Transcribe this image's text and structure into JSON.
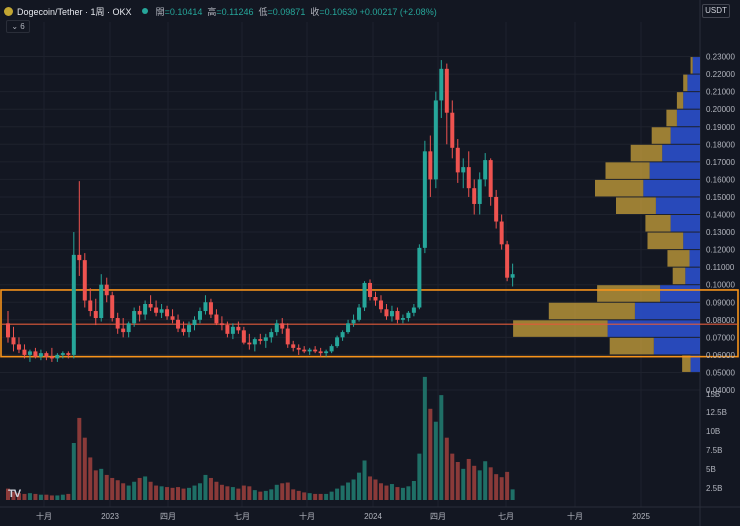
{
  "header": {
    "symbol": "Dogecoin/Tether · 1周 · OKX",
    "ohlc": [
      {
        "k": "開",
        "v": "=0.10414"
      },
      {
        "k": "高",
        "v": "=0.11246"
      },
      {
        "k": "低",
        "v": "=0.09871"
      },
      {
        "k": "收",
        "v": "=0.10630 +0.00217 (+2.08%)"
      }
    ],
    "collapse": "⌄ 6"
  },
  "unit_button": "USDT",
  "logo_text": "TV",
  "colors": {
    "up": "#26a69a",
    "down": "#ef5350",
    "box": "#f7931a",
    "vp_blue": "#2a4ec8",
    "vp_gold": "#bf9a3a"
  },
  "chart_data": {
    "type": "candlestick",
    "title": "Dogecoin/Tether · 1周 · OKX",
    "price_ticks": [
      "0.23000",
      "0.22000",
      "0.21000",
      "0.20000",
      "0.19000",
      "0.18000",
      "0.17000",
      "0.16000",
      "0.15000",
      "0.14000",
      "0.13000",
      "0.12000",
      "0.11000",
      "0.10000",
      "0.09000",
      "0.08000",
      "0.07000",
      "0.06000",
      "0.05000",
      "0.04000"
    ],
    "volume_ticks": [
      "15B",
      "12.5B",
      "10B",
      "7.5B",
      "5B",
      "2.5B"
    ],
    "x_ticks": [
      "十月",
      "2023",
      "四月",
      "七月",
      "十月",
      "2024",
      "四月",
      "七月",
      "十月",
      "2025"
    ],
    "ylim": [
      0.035,
      0.235
    ],
    "candles": [
      [
        0.078,
        0.085,
        0.067,
        0.07
      ],
      [
        0.07,
        0.076,
        0.062,
        0.066
      ],
      [
        0.066,
        0.07,
        0.061,
        0.063
      ],
      [
        0.063,
        0.066,
        0.058,
        0.06
      ],
      [
        0.06,
        0.063,
        0.056,
        0.062
      ],
      [
        0.062,
        0.064,
        0.058,
        0.059
      ],
      [
        0.059,
        0.063,
        0.057,
        0.061
      ],
      [
        0.061,
        0.062,
        0.057,
        0.059
      ],
      [
        0.059,
        0.064,
        0.056,
        0.058
      ],
      [
        0.058,
        0.061,
        0.056,
        0.06
      ],
      [
        0.06,
        0.062,
        0.058,
        0.061
      ],
      [
        0.061,
        0.062,
        0.058,
        0.06
      ],
      [
        0.06,
        0.13,
        0.058,
        0.117
      ],
      [
        0.117,
        0.159,
        0.105,
        0.114
      ],
      [
        0.114,
        0.118,
        0.087,
        0.091
      ],
      [
        0.091,
        0.098,
        0.082,
        0.085
      ],
      [
        0.085,
        0.092,
        0.077,
        0.081
      ],
      [
        0.081,
        0.106,
        0.079,
        0.1
      ],
      [
        0.1,
        0.104,
        0.09,
        0.094
      ],
      [
        0.094,
        0.096,
        0.079,
        0.081
      ],
      [
        0.081,
        0.084,
        0.072,
        0.075
      ],
      [
        0.075,
        0.081,
        0.07,
        0.073
      ],
      [
        0.073,
        0.079,
        0.07,
        0.078
      ],
      [
        0.078,
        0.087,
        0.076,
        0.085
      ],
      [
        0.085,
        0.088,
        0.079,
        0.083
      ],
      [
        0.083,
        0.091,
        0.08,
        0.089
      ],
      [
        0.089,
        0.094,
        0.085,
        0.087
      ],
      [
        0.087,
        0.091,
        0.082,
        0.084
      ],
      [
        0.084,
        0.089,
        0.081,
        0.086
      ],
      [
        0.086,
        0.088,
        0.08,
        0.082
      ],
      [
        0.082,
        0.086,
        0.078,
        0.08
      ],
      [
        0.08,
        0.083,
        0.073,
        0.075
      ],
      [
        0.075,
        0.079,
        0.071,
        0.073
      ],
      [
        0.073,
        0.079,
        0.07,
        0.077
      ],
      [
        0.077,
        0.082,
        0.074,
        0.08
      ],
      [
        0.08,
        0.087,
        0.078,
        0.085
      ],
      [
        0.085,
        0.094,
        0.083,
        0.09
      ],
      [
        0.09,
        0.092,
        0.081,
        0.083
      ],
      [
        0.083,
        0.086,
        0.077,
        0.078
      ],
      [
        0.078,
        0.082,
        0.074,
        0.077
      ],
      [
        0.077,
        0.079,
        0.07,
        0.072
      ],
      [
        0.072,
        0.078,
        0.069,
        0.076
      ],
      [
        0.076,
        0.079,
        0.072,
        0.074
      ],
      [
        0.074,
        0.076,
        0.066,
        0.067
      ],
      [
        0.067,
        0.072,
        0.063,
        0.066
      ],
      [
        0.066,
        0.07,
        0.062,
        0.069
      ],
      [
        0.069,
        0.072,
        0.066,
        0.068
      ],
      [
        0.068,
        0.072,
        0.064,
        0.07
      ],
      [
        0.07,
        0.075,
        0.067,
        0.073
      ],
      [
        0.073,
        0.08,
        0.071,
        0.078
      ],
      [
        0.078,
        0.081,
        0.072,
        0.075
      ],
      [
        0.075,
        0.078,
        0.064,
        0.066
      ],
      [
        0.066,
        0.068,
        0.062,
        0.064
      ],
      [
        0.064,
        0.066,
        0.06,
        0.063
      ],
      [
        0.063,
        0.065,
        0.061,
        0.062
      ],
      [
        0.062,
        0.064,
        0.06,
        0.063
      ],
      [
        0.063,
        0.065,
        0.061,
        0.062
      ],
      [
        0.062,
        0.064,
        0.059,
        0.061
      ],
      [
        0.061,
        0.063,
        0.059,
        0.062
      ],
      [
        0.062,
        0.066,
        0.061,
        0.065
      ],
      [
        0.065,
        0.071,
        0.064,
        0.07
      ],
      [
        0.07,
        0.074,
        0.068,
        0.073
      ],
      [
        0.073,
        0.08,
        0.072,
        0.078
      ],
      [
        0.078,
        0.083,
        0.076,
        0.08
      ],
      [
        0.08,
        0.089,
        0.079,
        0.087
      ],
      [
        0.087,
        0.102,
        0.085,
        0.101
      ],
      [
        0.101,
        0.103,
        0.091,
        0.093
      ],
      [
        0.093,
        0.096,
        0.088,
        0.091
      ],
      [
        0.091,
        0.094,
        0.084,
        0.086
      ],
      [
        0.086,
        0.089,
        0.08,
        0.082
      ],
      [
        0.082,
        0.088,
        0.079,
        0.085
      ],
      [
        0.085,
        0.087,
        0.078,
        0.08
      ],
      [
        0.08,
        0.083,
        0.078,
        0.081
      ],
      [
        0.081,
        0.085,
        0.079,
        0.084
      ],
      [
        0.084,
        0.089,
        0.082,
        0.087
      ],
      [
        0.087,
        0.123,
        0.086,
        0.121
      ],
      [
        0.121,
        0.182,
        0.118,
        0.176
      ],
      [
        0.176,
        0.185,
        0.15,
        0.16
      ],
      [
        0.16,
        0.21,
        0.155,
        0.205
      ],
      [
        0.205,
        0.228,
        0.195,
        0.223
      ],
      [
        0.223,
        0.226,
        0.18,
        0.198
      ],
      [
        0.198,
        0.205,
        0.172,
        0.178
      ],
      [
        0.178,
        0.183,
        0.158,
        0.164
      ],
      [
        0.164,
        0.172,
        0.155,
        0.167
      ],
      [
        0.167,
        0.176,
        0.15,
        0.155
      ],
      [
        0.155,
        0.16,
        0.14,
        0.146
      ],
      [
        0.146,
        0.164,
        0.14,
        0.16
      ],
      [
        0.16,
        0.175,
        0.156,
        0.171
      ],
      [
        0.171,
        0.172,
        0.145,
        0.15
      ],
      [
        0.15,
        0.154,
        0.132,
        0.136
      ],
      [
        0.136,
        0.14,
        0.12,
        0.123
      ],
      [
        0.123,
        0.125,
        0.102,
        0.104
      ],
      [
        0.104,
        0.112,
        0.099,
        0.106
      ]
    ],
    "volumes": [
      1.5,
      1.1,
      0.9,
      0.8,
      0.9,
      0.8,
      0.7,
      0.7,
      0.6,
      0.6,
      0.7,
      0.8,
      7.5,
      10.8,
      8.2,
      5.6,
      3.9,
      4.1,
      3.3,
      2.9,
      2.6,
      2.2,
      1.9,
      2.4,
      2.9,
      3.1,
      2.4,
      1.9,
      1.8,
      1.7,
      1.6,
      1.7,
      1.5,
      1.6,
      1.9,
      2.2,
      3.3,
      2.9,
      2.4,
      2.0,
      1.8,
      1.7,
      1.5,
      1.9,
      1.8,
      1.3,
      1.1,
      1.2,
      1.4,
      2.0,
      2.2,
      2.3,
      1.4,
      1.2,
      1.0,
      0.9,
      0.8,
      0.8,
      0.8,
      1.1,
      1.5,
      1.9,
      2.3,
      2.7,
      3.6,
      5.2,
      3.1,
      2.7,
      2.2,
      1.9,
      2.1,
      1.7,
      1.6,
      1.8,
      2.5,
      6.1,
      16.2,
      12.0,
      10.3,
      13.8,
      8.2,
      6.1,
      5.0,
      4.1,
      5.4,
      4.5,
      3.9,
      5.1,
      4.3,
      3.4,
      3.0,
      3.7,
      1.4
    ],
    "volume_profile": [
      {
        "p": 0.225,
        "up": 0.2,
        "dn": 0.7
      },
      {
        "p": 0.215,
        "up": 0.4,
        "dn": 1.2
      },
      {
        "p": 0.205,
        "up": 0.6,
        "dn": 1.6
      },
      {
        "p": 0.195,
        "up": 1.0,
        "dn": 2.2
      },
      {
        "p": 0.185,
        "up": 1.8,
        "dn": 2.8
      },
      {
        "p": 0.175,
        "up": 3.0,
        "dn": 3.6
      },
      {
        "p": 0.165,
        "up": 4.2,
        "dn": 4.8
      },
      {
        "p": 0.155,
        "up": 4.6,
        "dn": 5.4
      },
      {
        "p": 0.145,
        "up": 3.8,
        "dn": 4.2
      },
      {
        "p": 0.135,
        "up": 2.4,
        "dn": 2.8
      },
      {
        "p": 0.125,
        "up": 3.4,
        "dn": 1.6
      },
      {
        "p": 0.115,
        "up": 2.1,
        "dn": 1.0
      },
      {
        "p": 0.105,
        "up": 1.2,
        "dn": 1.4
      },
      {
        "p": 0.095,
        "up": 6.0,
        "dn": 3.8
      },
      {
        "p": 0.085,
        "up": 8.2,
        "dn": 6.2
      },
      {
        "p": 0.075,
        "up": 9.0,
        "dn": 8.8
      },
      {
        "p": 0.065,
        "up": 4.2,
        "dn": 4.4
      },
      {
        "p": 0.055,
        "up": 0.8,
        "dn": 0.9
      }
    ],
    "range_box": {
      "top": 0.097,
      "bottom": 0.059
    },
    "poc_line": 0.0775
  }
}
